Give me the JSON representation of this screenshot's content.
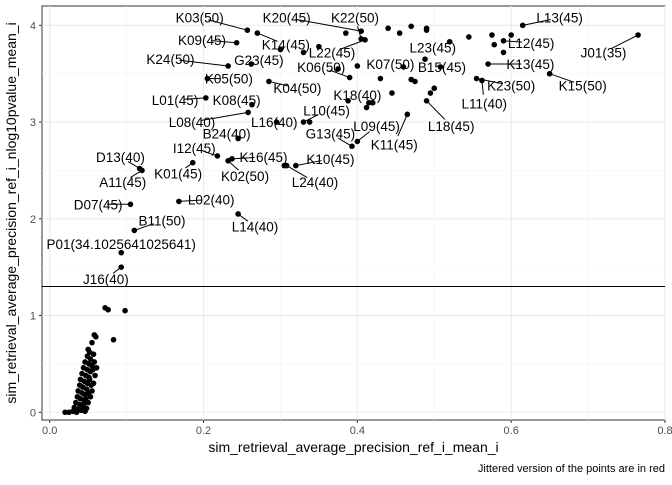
{
  "chart_data": {
    "type": "scatter",
    "xlabel": "sim_retrieval_average_precision_ref_i_mean_i",
    "ylabel": "sim_retrieval_average_precision_ref_i_nlog10pvalue_mean_i",
    "caption": "Jittered version of the points are in red",
    "xlim": [
      -0.01,
      0.8
    ],
    "ylim": [
      -0.08,
      4.2
    ],
    "xticks": [
      0.0,
      0.2,
      0.4,
      0.6,
      0.8
    ],
    "xtick_labels": [
      "0.0",
      "0.2",
      "0.4",
      "0.6",
      "0.8"
    ],
    "yticks": [
      0,
      1,
      2,
      3,
      4
    ],
    "ytick_labels": [
      "0",
      "1",
      "2",
      "3",
      "4"
    ],
    "hline": 1.3,
    "grid": true,
    "labeled_points": [
      {
        "label": "K03(50)",
        "x": 0.257,
        "y": 3.95,
        "lx": 0.195,
        "ly": 4.08
      },
      {
        "label": "K20(45)",
        "x": 0.405,
        "y": 3.94,
        "lx": 0.308,
        "ly": 4.08
      },
      {
        "label": "K22(50)",
        "x": 0.405,
        "y": 3.86,
        "lx": 0.397,
        "ly": 4.08
      },
      {
        "label": "L13(45)",
        "x": 0.615,
        "y": 4.0,
        "lx": 0.663,
        "ly": 4.08
      },
      {
        "label": "K09(45)",
        "x": 0.243,
        "y": 3.82,
        "lx": 0.198,
        "ly": 3.85
      },
      {
        "label": "K14(45)",
        "x": 0.27,
        "y": 3.92,
        "lx": 0.307,
        "ly": 3.8
      },
      {
        "label": "L22(45)",
        "x": 0.41,
        "y": 3.85,
        "lx": 0.367,
        "ly": 3.72
      },
      {
        "label": "L23(45)",
        "x": 0.52,
        "y": 3.83,
        "lx": 0.498,
        "ly": 3.77
      },
      {
        "label": "L12(45)",
        "x": 0.59,
        "y": 3.84,
        "lx": 0.626,
        "ly": 3.82
      },
      {
        "label": "J01(35)",
        "x": 0.765,
        "y": 3.9,
        "lx": 0.72,
        "ly": 3.72
      },
      {
        "label": "K24(50)",
        "x": 0.232,
        "y": 3.58,
        "lx": 0.157,
        "ly": 3.65
      },
      {
        "label": "G23(45)",
        "x": 0.262,
        "y": 3.6,
        "lx": 0.272,
        "ly": 3.64
      },
      {
        "label": "K06(50)",
        "x": 0.39,
        "y": 3.46,
        "lx": 0.353,
        "ly": 3.57
      },
      {
        "label": "K07(50)",
        "x": 0.46,
        "y": 3.57,
        "lx": 0.443,
        "ly": 3.6
      },
      {
        "label": "B15(45)",
        "x": 0.508,
        "y": 3.57,
        "lx": 0.51,
        "ly": 3.57
      },
      {
        "label": "K13(45)",
        "x": 0.57,
        "y": 3.6,
        "lx": 0.625,
        "ly": 3.6
      },
      {
        "label": "K05(50)",
        "x": 0.205,
        "y": 3.45,
        "lx": 0.233,
        "ly": 3.45
      },
      {
        "label": "K04(50)",
        "x": 0.285,
        "y": 3.42,
        "lx": 0.322,
        "ly": 3.35
      },
      {
        "label": "K23(50)",
        "x": 0.555,
        "y": 3.45,
        "lx": 0.6,
        "ly": 3.38
      },
      {
        "label": "K15(50)",
        "x": 0.65,
        "y": 3.5,
        "lx": 0.693,
        "ly": 3.38
      },
      {
        "label": "K18(40)",
        "x": 0.388,
        "y": 3.22,
        "lx": 0.4,
        "ly": 3.28
      },
      {
        "label": "L01(45)",
        "x": 0.203,
        "y": 3.25,
        "lx": 0.163,
        "ly": 3.23
      },
      {
        "label": "K08(45)",
        "x": 0.263,
        "y": 3.18,
        "lx": 0.243,
        "ly": 3.23
      },
      {
        "label": "L11(40)",
        "x": 0.562,
        "y": 3.43,
        "lx": 0.565,
        "ly": 3.19
      },
      {
        "label": "L10(45)",
        "x": 0.33,
        "y": 3.0,
        "lx": 0.36,
        "ly": 3.12
      },
      {
        "label": "L08(40)",
        "x": 0.258,
        "y": 3.1,
        "lx": 0.185,
        "ly": 3.0
      },
      {
        "label": "L16(40)",
        "x": 0.295,
        "y": 3.0,
        "lx": 0.292,
        "ly": 3.0
      },
      {
        "label": "L09(45)",
        "x": 0.4,
        "y": 2.8,
        "lx": 0.425,
        "ly": 2.96
      },
      {
        "label": "L18(45)",
        "x": 0.49,
        "y": 3.22,
        "lx": 0.522,
        "ly": 2.96
      },
      {
        "label": "B24(40)",
        "x": 0.245,
        "y": 2.83,
        "lx": 0.23,
        "ly": 2.88
      },
      {
        "label": "G13(45)",
        "x": 0.393,
        "y": 2.75,
        "lx": 0.365,
        "ly": 2.88
      },
      {
        "label": "K11(45)",
        "x": 0.465,
        "y": 3.08,
        "lx": 0.448,
        "ly": 2.77
      },
      {
        "label": "I12(45)",
        "x": 0.218,
        "y": 2.65,
        "lx": 0.188,
        "ly": 2.73
      },
      {
        "label": "K16(45)",
        "x": 0.237,
        "y": 2.62,
        "lx": 0.278,
        "ly": 2.64
      },
      {
        "label": "K10(45)",
        "x": 0.32,
        "y": 2.55,
        "lx": 0.365,
        "ly": 2.62
      },
      {
        "label": "D13(40)",
        "x": 0.117,
        "y": 2.52,
        "lx": 0.092,
        "ly": 2.64
      },
      {
        "label": "K01(45)",
        "x": 0.186,
        "y": 2.58,
        "lx": 0.167,
        "ly": 2.47
      },
      {
        "label": "K02(50)",
        "x": 0.232,
        "y": 2.6,
        "lx": 0.254,
        "ly": 2.44
      },
      {
        "label": "L24(40)",
        "x": 0.308,
        "y": 2.55,
        "lx": 0.345,
        "ly": 2.38
      },
      {
        "label": "A11(45)",
        "x": 0.12,
        "y": 2.5,
        "lx": 0.095,
        "ly": 2.38
      },
      {
        "label": "L02(40)",
        "x": 0.168,
        "y": 2.18,
        "lx": 0.21,
        "ly": 2.2
      },
      {
        "label": "D07(45)",
        "x": 0.105,
        "y": 2.15,
        "lx": 0.063,
        "ly": 2.15
      },
      {
        "label": "B11(50)",
        "x": 0.11,
        "y": 1.88,
        "lx": 0.146,
        "ly": 1.98
      },
      {
        "label": "L14(40)",
        "x": 0.245,
        "y": 2.05,
        "lx": 0.267,
        "ly": 1.92
      },
      {
        "label": "P01(34.1025641025641)",
        "x": 0.093,
        "y": 1.65,
        "lx": 0.093,
        "ly": 1.74
      },
      {
        "label": "J16(40)",
        "x": 0.093,
        "y": 1.5,
        "lx": 0.073,
        "ly": 1.38
      }
    ],
    "extra_points": [
      [
        0.3,
        3.75
      ],
      [
        0.33,
        3.72
      ],
      [
        0.35,
        3.78
      ],
      [
        0.385,
        3.92
      ],
      [
        0.44,
        3.97
      ],
      [
        0.455,
        3.92
      ],
      [
        0.47,
        3.99
      ],
      [
        0.49,
        3.95
      ],
      [
        0.49,
        3.97
      ],
      [
        0.545,
        3.88
      ],
      [
        0.575,
        3.9
      ],
      [
        0.578,
        3.8
      ],
      [
        0.6,
        3.9
      ],
      [
        0.59,
        3.72
      ],
      [
        0.375,
        3.55
      ],
      [
        0.4,
        3.58
      ],
      [
        0.43,
        3.45
      ],
      [
        0.47,
        3.44
      ],
      [
        0.475,
        3.42
      ],
      [
        0.488,
        3.65
      ],
      [
        0.495,
        3.3
      ],
      [
        0.5,
        3.35
      ],
      [
        0.445,
        3.3
      ],
      [
        0.412,
        3.15
      ],
      [
        0.42,
        3.2
      ],
      [
        0.338,
        3.0
      ],
      [
        0.305,
        2.55
      ],
      [
        0.415,
        3.2
      ],
      [
        0.072,
        1.08
      ],
      [
        0.076,
        1.06
      ],
      [
        0.098,
        1.05
      ],
      [
        0.083,
        0.75
      ],
      [
        0.058,
        0.8
      ],
      [
        0.06,
        0.78
      ],
      [
        0.055,
        0.72
      ],
      [
        0.05,
        0.65
      ],
      [
        0.052,
        0.62
      ],
      [
        0.057,
        0.6
      ],
      [
        0.049,
        0.58
      ],
      [
        0.053,
        0.55
      ],
      [
        0.046,
        0.52
      ],
      [
        0.051,
        0.5
      ],
      [
        0.055,
        0.48
      ],
      [
        0.044,
        0.46
      ],
      [
        0.049,
        0.44
      ],
      [
        0.053,
        0.42
      ],
      [
        0.042,
        0.4
      ],
      [
        0.047,
        0.38
      ],
      [
        0.051,
        0.36
      ],
      [
        0.04,
        0.34
      ],
      [
        0.045,
        0.32
      ],
      [
        0.049,
        0.3
      ],
      [
        0.039,
        0.28
      ],
      [
        0.043,
        0.26
      ],
      [
        0.048,
        0.24
      ],
      [
        0.037,
        0.22
      ],
      [
        0.042,
        0.2
      ],
      [
        0.046,
        0.18
      ],
      [
        0.036,
        0.16
      ],
      [
        0.04,
        0.14
      ],
      [
        0.045,
        0.12
      ],
      [
        0.034,
        0.1
      ],
      [
        0.039,
        0.08
      ],
      [
        0.043,
        0.06
      ],
      [
        0.032,
        0.05
      ],
      [
        0.037,
        0.03
      ],
      [
        0.041,
        0.02
      ],
      [
        0.046,
        0.01
      ],
      [
        0.03,
        0.01
      ],
      [
        0.025,
        0.0
      ],
      [
        0.02,
        0.0
      ],
      [
        0.035,
        0.0
      ],
      [
        0.052,
        0.34
      ],
      [
        0.054,
        0.28
      ],
      [
        0.056,
        0.44
      ],
      [
        0.058,
        0.52
      ],
      [
        0.047,
        0.14
      ],
      [
        0.05,
        0.2
      ],
      [
        0.044,
        0.08
      ],
      [
        0.048,
        0.04
      ],
      [
        0.05,
        0.1
      ],
      [
        0.053,
        0.16
      ],
      [
        0.055,
        0.22
      ],
      [
        0.057,
        0.3
      ],
      [
        0.059,
        0.38
      ],
      [
        0.061,
        0.46
      ]
    ]
  }
}
